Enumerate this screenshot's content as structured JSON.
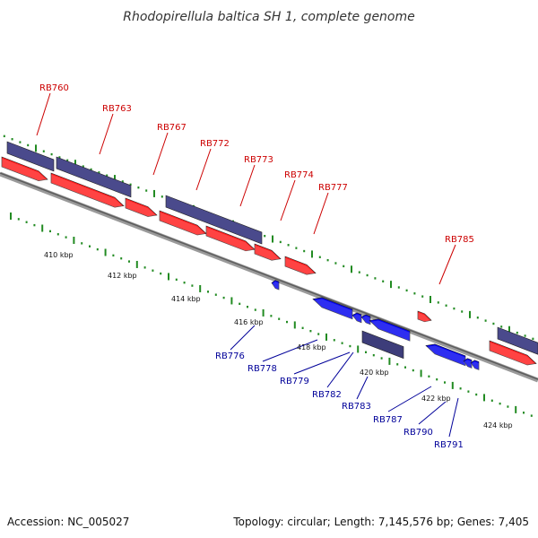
{
  "title": "Rhodopirellula baltica SH 1, complete genome",
  "footer": {
    "accession": "Accession: NC_005027",
    "summary": "Topology: circular; Length: 7,145,576 bp; Genes: 7,405"
  },
  "colors": {
    "forward_gene": "#ff1a1a",
    "forward_cds": "#4a4a8c",
    "reverse_gene": "#0000ee",
    "reverse_cds": "#3d3d7a",
    "top_label": "#cc0000",
    "bottom_label": "#000099",
    "tick": "#228b22",
    "backbone": "#777777"
  },
  "kbp_labels": [
    "410 kbp",
    "412 kbp",
    "414 kbp",
    "416 kbp",
    "418 kbp",
    "420 kbp",
    "422 kbp",
    "424 kbp"
  ],
  "top_gene_labels": [
    "RB760",
    "RB763",
    "RB767",
    "RB772",
    "RB773",
    "RB774",
    "RB777",
    "RB785"
  ],
  "bottom_gene_labels": [
    "RB776",
    "RB778",
    "RB779",
    "RB782",
    "RB783",
    "RB787",
    "RB790",
    "RB791"
  ]
}
